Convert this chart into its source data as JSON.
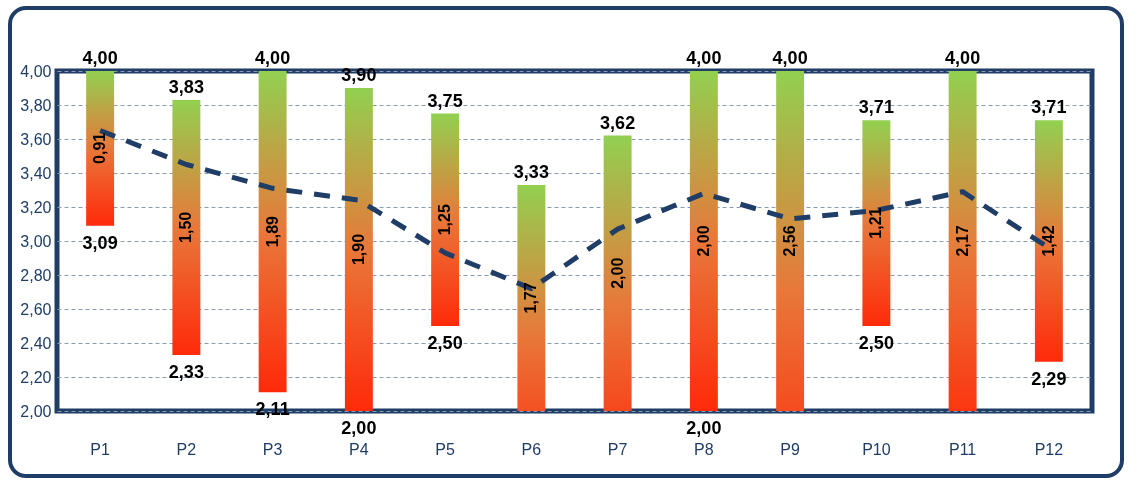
{
  "chart_data": {
    "type": "bar",
    "categories": [
      "P1",
      "P2",
      "P3",
      "P4",
      "P5",
      "P6",
      "P7",
      "P8",
      "P9",
      "P10",
      "P11",
      "P12"
    ],
    "series": [
      {
        "color": "#92d050",
        "base": [
          3.09,
          2.33,
          2.11,
          2.0,
          2.5,
          1.56,
          1.62,
          2.0,
          1.44,
          2.5,
          1.83,
          2.29
        ],
        "values": [
          0.91,
          1.5,
          1.89,
          1.9,
          1.25,
          1.77,
          2.0,
          2.0,
          2.56,
          1.21,
          2.17,
          1.42
        ],
        "value_labels": [
          "0,91",
          "1,50",
          "1,89",
          "1,90",
          "1,25",
          "1,77",
          "2,00",
          "2,00",
          "2,56",
          "1,21",
          "2,17",
          "1,42"
        ]
      },
      {
        "type": "line",
        "color": "#1f3d66",
        "line_style": "dashed",
        "marker": "none",
        "values": [
          3.65,
          3.45,
          3.31,
          3.24,
          2.93,
          2.72,
          3.07,
          3.28,
          3.13,
          3.18,
          3.29,
          2.96
        ]
      }
    ],
    "annotations": [
      {
        "text": "4,00",
        "x": "P1",
        "y": 4.0
      },
      {
        "text": "3,83",
        "x": "P2",
        "y": 3.83
      },
      {
        "text": "4,00",
        "x": "P3",
        "y": 4.0
      },
      {
        "text": "3,90",
        "x": "P4",
        "y": 3.9
      },
      {
        "text": "3,75",
        "x": "P5",
        "y": 3.75
      },
      {
        "text": "3,33",
        "x": "P6",
        "y": 3.33
      },
      {
        "text": "3,62",
        "x": "P7",
        "y": 3.62
      },
      {
        "text": "4,00",
        "x": "P8",
        "y": 4.0
      },
      {
        "text": "4,00",
        "x": "P9",
        "y": 4.0
      },
      {
        "text": "3,71",
        "x": "P10",
        "y": 3.71
      },
      {
        "text": "4,00",
        "x": "P11",
        "y": 4.0
      },
      {
        "text": "3,71",
        "x": "P12",
        "y": 3.71
      },
      {
        "text": "3,09",
        "x": "P1",
        "y": 3.09
      },
      {
        "text": "2,33",
        "x": "P2",
        "y": 2.33
      },
      {
        "text": "2,11",
        "x": "P3",
        "y": 2.11
      },
      {
        "text": "2,00",
        "x": "P4",
        "y": 2.0
      },
      {
        "text": "2,50",
        "x": "P5",
        "y": 2.5
      },
      {
        "text": "2,00",
        "x": "P8",
        "y": 2.0
      },
      {
        "text": "2,50",
        "x": "P10",
        "y": 2.5
      },
      {
        "text": "2,29",
        "x": "P12",
        "y": 2.29
      }
    ],
    "ylim": [
      2.0,
      4.0
    ],
    "yticks": [
      {
        "value": 2.0,
        "label": "2,00"
      },
      {
        "value": 2.2,
        "label": "2,20"
      },
      {
        "value": 2.4,
        "label": "2,40"
      },
      {
        "value": 2.6,
        "label": "2,60"
      },
      {
        "value": 2.8,
        "label": "2,80"
      },
      {
        "value": 3.0,
        "label": "3,00"
      },
      {
        "value": 3.2,
        "label": "3,20"
      },
      {
        "value": 3.4,
        "label": "3,40"
      },
      {
        "value": 3.6,
        "label": "3,60"
      },
      {
        "value": 3.8,
        "label": "3,80"
      },
      {
        "value": 4.0,
        "label": "4,00"
      }
    ],
    "grid": "y"
  }
}
